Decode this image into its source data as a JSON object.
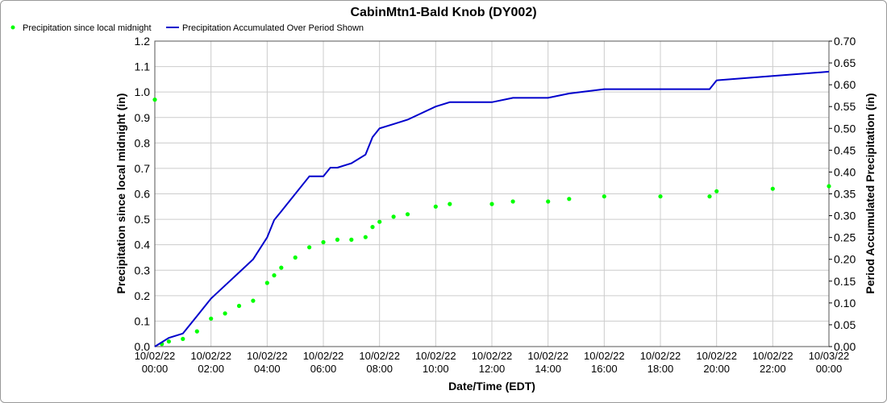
{
  "chart_data": {
    "type": "line",
    "title": "CabinMtn1-Bald Knob (DY002)",
    "xlabel": "Date/Time (EDT)",
    "ylabel_left": "Precipitation since local midnight (in)",
    "ylabel_right": "Period Accumulated Precipitation (in)",
    "ylim_left": [
      0,
      1.2
    ],
    "ylim_right": [
      0,
      0.7
    ],
    "xlim_hours": [
      0,
      24
    ],
    "grid": true,
    "legend_position": "top-left",
    "left_ticks": [
      "0.0",
      "0.1",
      "0.2",
      "0.3",
      "0.4",
      "0.5",
      "0.6",
      "0.7",
      "0.8",
      "0.9",
      "1.0",
      "1.1",
      "1.2"
    ],
    "right_ticks": [
      "0.00",
      "0.05",
      "0.10",
      "0.15",
      "0.20",
      "0.25",
      "0.30",
      "0.35",
      "0.40",
      "0.45",
      "0.50",
      "0.55",
      "0.60",
      "0.65",
      "0.70"
    ],
    "x_ticks": [
      {
        "date": "10/02/22",
        "time": "00:00"
      },
      {
        "date": "10/02/22",
        "time": "02:00"
      },
      {
        "date": "10/02/22",
        "time": "04:00"
      },
      {
        "date": "10/02/22",
        "time": "06:00"
      },
      {
        "date": "10/02/22",
        "time": "08:00"
      },
      {
        "date": "10/02/22",
        "time": "10:00"
      },
      {
        "date": "10/02/22",
        "time": "12:00"
      },
      {
        "date": "10/02/22",
        "time": "14:00"
      },
      {
        "date": "10/02/22",
        "time": "16:00"
      },
      {
        "date": "10/02/22",
        "time": "18:00"
      },
      {
        "date": "10/02/22",
        "time": "20:00"
      },
      {
        "date": "10/02/22",
        "time": "22:00"
      },
      {
        "date": "10/03/22",
        "time": "00:00"
      }
    ],
    "series": [
      {
        "name": "Precipitation since local midnight",
        "axis": "left",
        "color": "#00ff00",
        "style": "dots",
        "x_hours": [
          0.0,
          0.25,
          0.5,
          1.0,
          1.5,
          2.0,
          2.5,
          3.0,
          3.5,
          4.0,
          4.25,
          4.5,
          5.0,
          5.5,
          6.0,
          6.5,
          7.0,
          7.5,
          7.75,
          8.0,
          8.5,
          9.0,
          10.0,
          10.5,
          12.0,
          12.75,
          14.0,
          14.75,
          16.0,
          18.0,
          19.75,
          20.0,
          22.0,
          24.0
        ],
        "y": [
          0.97,
          0.01,
          0.02,
          0.03,
          0.06,
          0.11,
          0.13,
          0.16,
          0.18,
          0.25,
          0.28,
          0.31,
          0.35,
          0.39,
          0.41,
          0.42,
          0.42,
          0.43,
          0.47,
          0.49,
          0.51,
          0.52,
          0.55,
          0.56,
          0.56,
          0.57,
          0.57,
          0.58,
          0.59,
          0.59,
          0.59,
          0.61,
          0.62,
          0.63
        ]
      },
      {
        "name": "Precipitation Accumulated Over Period Shown",
        "axis": "right",
        "color": "#0000cc",
        "style": "line",
        "x_hours": [
          0.0,
          0.5,
          1.0,
          1.5,
          2.0,
          2.5,
          3.0,
          3.5,
          4.0,
          4.25,
          4.5,
          5.0,
          5.5,
          6.0,
          6.25,
          6.5,
          7.0,
          7.5,
          7.75,
          8.0,
          8.5,
          9.0,
          10.0,
          10.5,
          12.0,
          12.75,
          14.0,
          14.75,
          16.0,
          18.0,
          19.75,
          20.0,
          22.0,
          24.0
        ],
        "y": [
          0.0,
          0.02,
          0.03,
          0.07,
          0.11,
          0.14,
          0.17,
          0.2,
          0.25,
          0.29,
          0.31,
          0.35,
          0.39,
          0.39,
          0.41,
          0.41,
          0.42,
          0.44,
          0.48,
          0.5,
          0.51,
          0.52,
          0.55,
          0.56,
          0.56,
          0.57,
          0.57,
          0.58,
          0.59,
          0.59,
          0.59,
          0.61,
          0.62,
          0.63
        ]
      }
    ]
  }
}
